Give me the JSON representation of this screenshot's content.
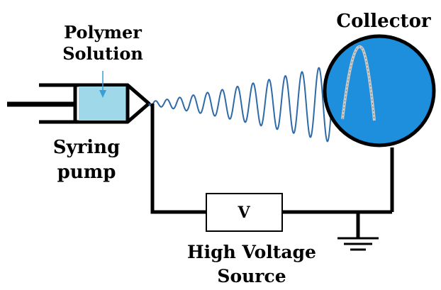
{
  "labels": {
    "polymer_line1": "Polymer",
    "polymer_line2": "Solution",
    "collector": "Collector",
    "syringe_line1": "Syring",
    "syringe_line2": "pump",
    "source_symbol": "V",
    "hv_line1": "High Voltage",
    "hv_line2": "Source"
  },
  "colors": {
    "solution_fill": "#9fd8e8",
    "solution_arrow": "#3a9fd6",
    "collector_fill": "#1e8fdc",
    "jet": "#2f6aa8",
    "deposited_fiber": "#c9c9c9",
    "wire": "#000000"
  },
  "icons": [
    "ground-icon"
  ]
}
